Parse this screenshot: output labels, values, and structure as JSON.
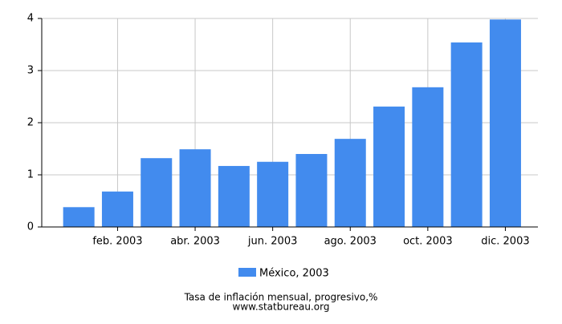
{
  "chart_data": {
    "type": "bar",
    "categories": [
      null,
      "feb. 2003",
      null,
      "abr. 2003",
      null,
      "jun. 2003",
      null,
      "ago. 2003",
      null,
      "oct. 2003",
      null,
      "dic. 2003"
    ],
    "series": [
      {
        "name": "México, 2003",
        "color": "#428bee",
        "values": [
          0.38,
          0.68,
          1.32,
          1.49,
          1.17,
          1.25,
          1.4,
          1.69,
          2.31,
          2.68,
          3.54,
          3.98
        ]
      }
    ],
    "ylim": [
      0,
      4
    ],
    "yticks": [
      0,
      1,
      2,
      3,
      4
    ],
    "grid": true,
    "title": "Tasa de inflación mensual, progresivo,%",
    "source": "www.statbureau.org"
  }
}
